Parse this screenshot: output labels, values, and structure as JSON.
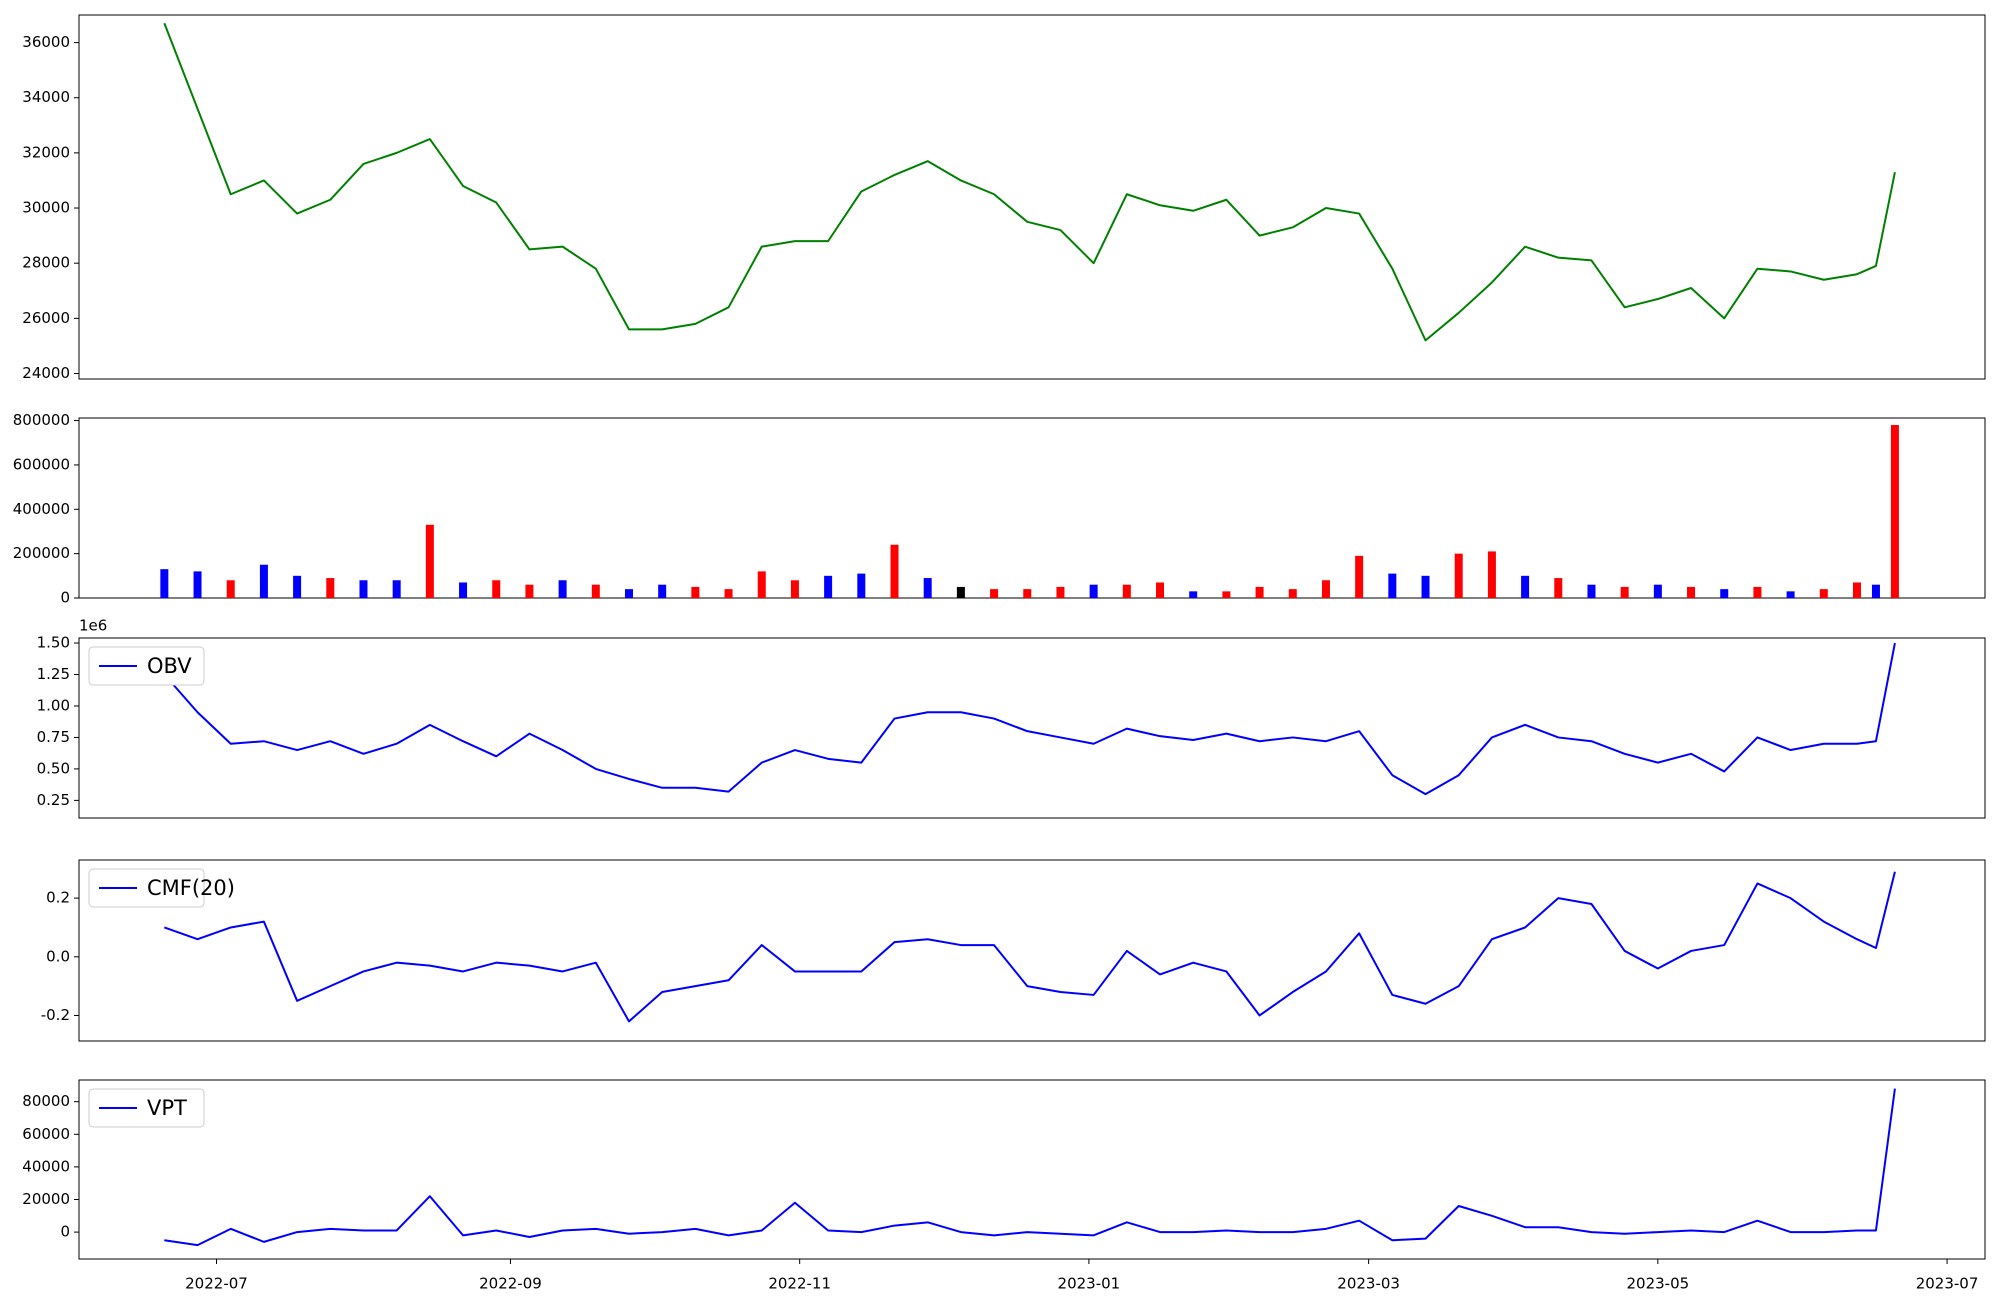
{
  "chart_data": [
    {
      "type": "line",
      "x": [
        "2022-06-20",
        "2022-06-27",
        "2022-07-04",
        "2022-07-11",
        "2022-07-18",
        "2022-07-25",
        "2022-08-01",
        "2022-08-08",
        "2022-08-15",
        "2022-08-22",
        "2022-08-29",
        "2022-09-05",
        "2022-09-12",
        "2022-09-19",
        "2022-09-26",
        "2022-10-03",
        "2022-10-10",
        "2022-10-17",
        "2022-10-24",
        "2022-10-31",
        "2022-11-07",
        "2022-11-14",
        "2022-11-21",
        "2022-11-28",
        "2022-12-05",
        "2022-12-12",
        "2022-12-19",
        "2022-12-26",
        "2023-01-02",
        "2023-01-09",
        "2023-01-16",
        "2023-01-23",
        "2023-01-30",
        "2023-02-06",
        "2023-02-13",
        "2023-02-20",
        "2023-02-27",
        "2023-03-06",
        "2023-03-13",
        "2023-03-20",
        "2023-03-27",
        "2023-04-03",
        "2023-04-10",
        "2023-04-17",
        "2023-04-24",
        "2023-05-01",
        "2023-05-08",
        "2023-05-15",
        "2023-05-22",
        "2023-05-29",
        "2023-06-05",
        "2023-06-12",
        "2023-06-16",
        "2023-06-20"
      ],
      "series": [
        {
          "color": "#008000",
          "values": [
            36700,
            33600,
            30500,
            31000,
            29800,
            30300,
            31600,
            32000,
            32500,
            30800,
            30200,
            28500,
            28600,
            27800,
            25600,
            25600,
            25800,
            26400,
            28600,
            28800,
            28800,
            30600,
            31200,
            31700,
            31000,
            30500,
            29500,
            29200,
            28000,
            30500,
            30100,
            29900,
            30300,
            29000,
            29300,
            30000,
            29800,
            27800,
            25200,
            26200,
            27300,
            28600,
            28200,
            28100,
            26400,
            26700,
            27100,
            26000,
            27800,
            27700,
            27400,
            27600,
            27900,
            31300
          ]
        }
      ],
      "ylim": [
        23800,
        37000
      ],
      "yticks": [
        24000,
        26000,
        28000,
        30000,
        32000,
        34000,
        36000
      ]
    },
    {
      "type": "bar",
      "values": [
        130000,
        120000,
        80000,
        150000,
        100000,
        90000,
        80000,
        80000,
        330000,
        70000,
        80000,
        60000,
        80000,
        60000,
        40000,
        60000,
        50000,
        40000,
        120000,
        80000,
        100000,
        110000,
        240000,
        90000,
        50000,
        40000,
        40000,
        50000,
        60000,
        60000,
        70000,
        30000,
        30000,
        50000,
        40000,
        80000,
        190000,
        110000,
        100000,
        200000,
        210000,
        100000,
        90000,
        60000,
        50000,
        60000,
        50000,
        40000,
        50000,
        30000,
        40000,
        70000,
        60000,
        780000
      ],
      "colors": [
        "#0000ff",
        "#0000ff",
        "#ff0000",
        "#0000ff",
        "#0000ff",
        "#ff0000",
        "#0000ff",
        "#0000ff",
        "#ff0000",
        "#0000ff",
        "#ff0000",
        "#ff0000",
        "#0000ff",
        "#ff0000",
        "#0000ff",
        "#0000ff",
        "#ff0000",
        "#ff0000",
        "#ff0000",
        "#ff0000",
        "#0000ff",
        "#0000ff",
        "#ff0000",
        "#0000ff",
        "#000000",
        "#ff0000",
        "#ff0000",
        "#ff0000",
        "#0000ff",
        "#ff0000",
        "#ff0000",
        "#0000ff",
        "#ff0000",
        "#ff0000",
        "#ff0000",
        "#ff0000",
        "#ff0000",
        "#0000ff",
        "#0000ff",
        "#ff0000",
        "#ff0000",
        "#0000ff",
        "#ff0000",
        "#0000ff",
        "#ff0000",
        "#0000ff",
        "#ff0000",
        "#0000ff",
        "#ff0000",
        "#0000ff",
        "#ff0000",
        "#ff0000",
        "#0000ff",
        "#ff0000"
      ],
      "ylim": [
        0,
        811500
      ],
      "yticks": [
        0,
        200000,
        400000,
        600000,
        800000
      ]
    },
    {
      "type": "line",
      "offset_text": "1e6",
      "legend": "upper left",
      "series": [
        {
          "name": "OBV",
          "color": "#0000ff",
          "values": [
            1.25,
            0.95,
            0.7,
            0.72,
            0.65,
            0.72,
            0.62,
            0.7,
            0.85,
            0.72,
            0.6,
            0.78,
            0.65,
            0.5,
            0.42,
            0.35,
            0.35,
            0.32,
            0.55,
            0.65,
            0.58,
            0.55,
            0.9,
            0.95,
            0.95,
            0.9,
            0.8,
            0.75,
            0.7,
            0.82,
            0.76,
            0.73,
            0.78,
            0.72,
            0.75,
            0.72,
            0.8,
            0.45,
            0.3,
            0.45,
            0.75,
            0.85,
            0.75,
            0.72,
            0.62,
            0.55,
            0.62,
            0.48,
            0.75,
            0.65,
            0.7,
            0.7,
            0.72,
            1.5
          ]
        }
      ],
      "ylim": [
        0.11,
        1.54
      ],
      "yticks": [
        {
          "value": 0.25,
          "label": "0.25"
        },
        {
          "value": 0.5,
          "label": "0.50"
        },
        {
          "value": 0.75,
          "label": "0.75"
        },
        {
          "value": 1,
          "label": "1.00"
        },
        {
          "value": 1.25,
          "label": "1.25"
        },
        {
          "value": 1.5,
          "label": "1.50"
        }
      ]
    },
    {
      "type": "line",
      "legend": "upper left",
      "series": [
        {
          "name": "CMF(20)",
          "color": "#0000ff",
          "values": [
            0.1,
            0.06,
            0.1,
            0.12,
            -0.15,
            -0.1,
            -0.05,
            -0.02,
            -0.03,
            -0.05,
            -0.02,
            -0.03,
            -0.05,
            -0.02,
            -0.22,
            -0.12,
            -0.1,
            -0.08,
            0.04,
            -0.05,
            -0.05,
            -0.05,
            0.05,
            0.06,
            0.04,
            0.04,
            -0.1,
            -0.12,
            -0.13,
            0.02,
            -0.06,
            -0.02,
            -0.05,
            -0.2,
            -0.12,
            -0.05,
            0.08,
            -0.13,
            -0.16,
            -0.1,
            0.06,
            0.1,
            0.2,
            0.18,
            0.02,
            -0.04,
            0.02,
            0.04,
            0.25,
            0.2,
            0.12,
            0.06,
            0.03,
            0.29
          ]
        }
      ],
      "ylim": [
        -0.287,
        0.33
      ],
      "yticks": [
        -0.2,
        {
          "value": 0,
          "label": "0.0"
        },
        0.2
      ]
    },
    {
      "type": "line",
      "legend": "upper left",
      "series": [
        {
          "name": "VPT",
          "color": "#0000ff",
          "values": [
            -5000,
            -8000,
            2000,
            -6000,
            0,
            2000,
            1000,
            1000,
            22000,
            -2000,
            1000,
            -3000,
            1000,
            2000,
            -1000,
            0,
            2000,
            -2000,
            1000,
            18000,
            1000,
            0,
            4000,
            6000,
            0,
            -2000,
            0,
            -1000,
            -2000,
            6000,
            0,
            0,
            1000,
            0,
            0,
            2000,
            7000,
            -5000,
            -4000,
            16000,
            10000,
            3000,
            3000,
            0,
            -1000,
            0,
            1000,
            0,
            7000,
            0,
            0,
            1000,
            1000,
            88000
          ]
        }
      ],
      "ylim": [
        -16500,
        93300
      ],
      "yticks": [
        0,
        20000,
        40000,
        60000,
        80000
      ],
      "xlim": [
        "2022-06-02",
        "2023-07-09"
      ],
      "xticks": [
        {
          "value": "2022-07-01",
          "label": "2022-07"
        },
        {
          "value": "2022-09-01",
          "label": "2022-09"
        },
        {
          "value": "2022-11-01",
          "label": "2022-11"
        },
        {
          "value": "2023-01-01",
          "label": "2023-01"
        },
        {
          "value": "2023-03-01",
          "label": "2023-03"
        },
        {
          "value": "2023-05-01",
          "label": "2023-05"
        },
        {
          "value": "2023-07-01",
          "label": "2023-07"
        }
      ]
    }
  ]
}
